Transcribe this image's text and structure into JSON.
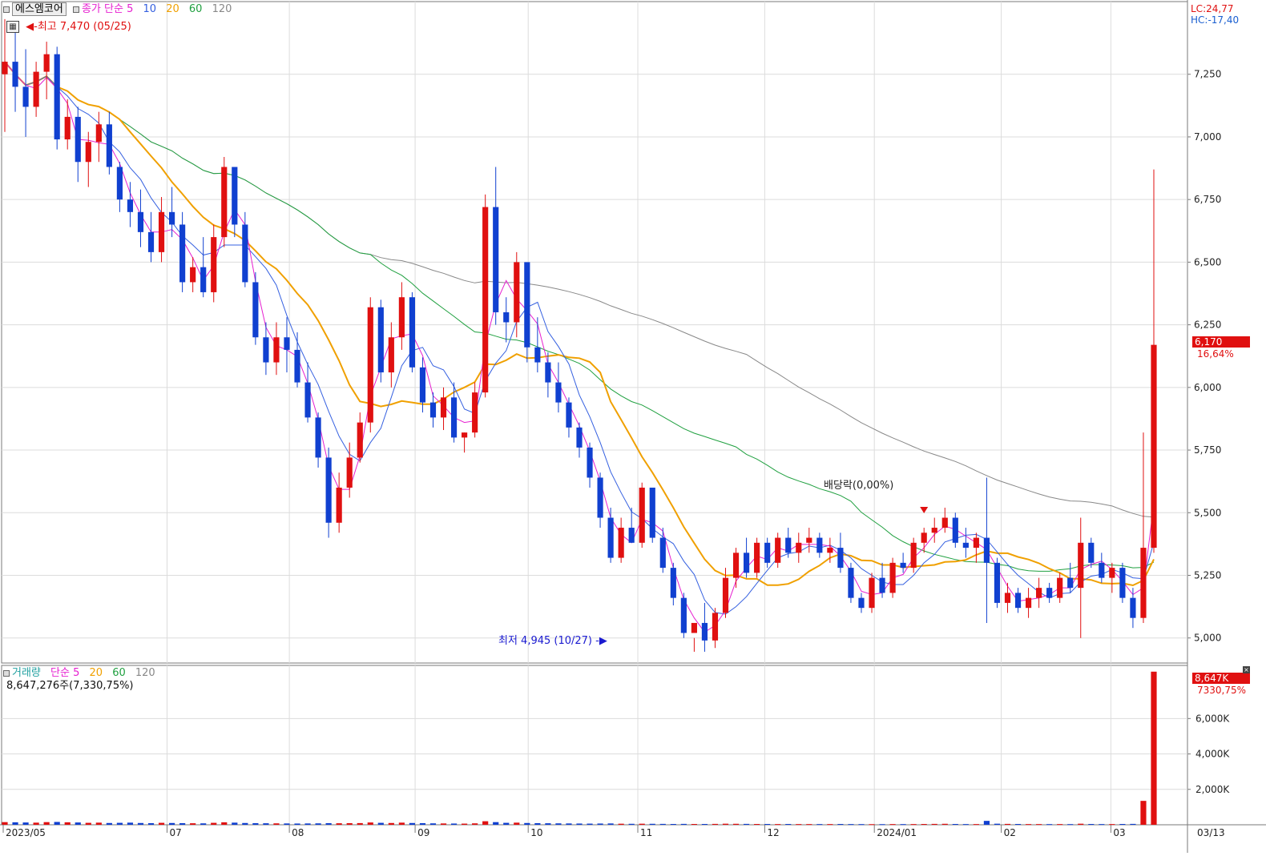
{
  "price_panel": {
    "stock_name": "에스엠코어",
    "ma_label": "종가 단순",
    "ma_periods": [
      "5",
      "10",
      "20",
      "60",
      "120"
    ],
    "ma_colors": [
      "#e61fd0",
      "#3560e0",
      "#f0a000",
      "#20a040",
      "#888888"
    ],
    "high_marker": "최고 7,470 (05/25)",
    "low_marker": "최저 4,945 (10/27)",
    "dividend_label": "배당락(0,00%)",
    "lc": "LC:24,77",
    "hc": "HC:-17,40",
    "current_price": "6,170",
    "current_change": "16,64%"
  },
  "volume_panel": {
    "label": "거래량",
    "ma_label": "단순",
    "ma_periods": [
      "5",
      "20",
      "60",
      "120"
    ],
    "ma_colors": [
      "#e61fd0",
      "#f0a000",
      "#20a040",
      "#888888"
    ],
    "volume_text": "8,647,276주(7,330,75%)",
    "current_volume": "8,647K",
    "current_ratio": "7330,75%"
  },
  "x_axis_labels": [
    "2023/05",
    "07",
    "08",
    "09",
    "10",
    "11",
    "12",
    "2024/01",
    "02",
    "03",
    "03/13"
  ],
  "price_axis_ticks": [
    "7,250",
    "7,000",
    "6,750",
    "6,500",
    "6,250",
    "6,000",
    "5,750",
    "5,500",
    "5,250",
    "5,000"
  ],
  "volume_axis_ticks": [
    "6,000K",
    "4,000K",
    "2,000K"
  ],
  "chart_data": {
    "type": "candlestick",
    "up_color": "#e01010",
    "down_color": "#1040d0",
    "price_ylim": [
      4900,
      7540
    ],
    "volume_ylim": [
      0,
      9000000
    ],
    "candles_ohlc": [
      [
        7250,
        7470,
        7020,
        7300
      ],
      [
        7300,
        7440,
        7100,
        7200
      ],
      [
        7200,
        7350,
        7000,
        7120
      ],
      [
        7120,
        7300,
        7080,
        7260
      ],
      [
        7260,
        7380,
        7150,
        7330
      ],
      [
        7330,
        7360,
        6950,
        6990
      ],
      [
        6990,
        7150,
        6950,
        7080
      ],
      [
        7080,
        7120,
        6820,
        6900
      ],
      [
        6900,
        7020,
        6800,
        6980
      ],
      [
        6980,
        7100,
        6900,
        7050
      ],
      [
        7050,
        7100,
        6850,
        6880
      ],
      [
        6880,
        6900,
        6700,
        6750
      ],
      [
        6750,
        6820,
        6640,
        6700
      ],
      [
        6700,
        6790,
        6560,
        6620
      ],
      [
        6620,
        6700,
        6500,
        6540
      ],
      [
        6540,
        6760,
        6500,
        6700
      ],
      [
        6700,
        6800,
        6600,
        6650
      ],
      [
        6650,
        6700,
        6380,
        6420
      ],
      [
        6420,
        6520,
        6380,
        6480
      ],
      [
        6480,
        6600,
        6360,
        6380
      ],
      [
        6380,
        6650,
        6340,
        6600
      ],
      [
        6600,
        6920,
        6560,
        6880
      ],
      [
        6880,
        6860,
        6600,
        6650
      ],
      [
        6650,
        6700,
        6400,
        6420
      ],
      [
        6420,
        6460,
        6170,
        6200
      ],
      [
        6200,
        6260,
        6050,
        6100
      ],
      [
        6100,
        6260,
        6050,
        6200
      ],
      [
        6200,
        6280,
        6060,
        6150
      ],
      [
        6150,
        6220,
        6000,
        6020
      ],
      [
        6020,
        6100,
        5860,
        5880
      ],
      [
        5880,
        5900,
        5680,
        5720
      ],
      [
        5720,
        5760,
        5400,
        5460
      ],
      [
        5460,
        5660,
        5420,
        5600
      ],
      [
        5600,
        5780,
        5560,
        5720
      ],
      [
        5720,
        5900,
        5700,
        5860
      ],
      [
        5860,
        6360,
        5820,
        6320
      ],
      [
        6320,
        6350,
        6020,
        6060
      ],
      [
        6060,
        6260,
        6000,
        6200
      ],
      [
        6200,
        6420,
        6150,
        6360
      ],
      [
        6360,
        6380,
        6060,
        6080
      ],
      [
        6080,
        6120,
        5900,
        5940
      ],
      [
        5940,
        5980,
        5840,
        5880
      ],
      [
        5880,
        6000,
        5830,
        5960
      ],
      [
        5960,
        6020,
        5780,
        5800
      ],
      [
        5800,
        5820,
        5740,
        5820
      ],
      [
        5820,
        6020,
        5800,
        5980
      ],
      [
        5980,
        6770,
        5960,
        6720
      ],
      [
        6720,
        6880,
        6250,
        6300
      ],
      [
        6300,
        6360,
        6180,
        6260
      ],
      [
        6260,
        6540,
        6200,
        6500
      ],
      [
        6500,
        6300,
        6100,
        6160
      ],
      [
        6160,
        6280,
        6060,
        6100
      ],
      [
        6100,
        6140,
        5960,
        6020
      ],
      [
        6020,
        6100,
        5900,
        5940
      ],
      [
        5940,
        5960,
        5800,
        5840
      ],
      [
        5840,
        5860,
        5720,
        5760
      ],
      [
        5760,
        5780,
        5600,
        5640
      ],
      [
        5640,
        5660,
        5440,
        5480
      ],
      [
        5480,
        5520,
        5300,
        5320
      ],
      [
        5320,
        5480,
        5300,
        5440
      ],
      [
        5440,
        5520,
        5380,
        5380
      ],
      [
        5380,
        5620,
        5360,
        5600
      ],
      [
        5600,
        5440,
        5380,
        5400
      ],
      [
        5400,
        5440,
        5260,
        5280
      ],
      [
        5280,
        5300,
        5130,
        5160
      ],
      [
        5160,
        5180,
        5000,
        5020
      ],
      [
        5020,
        5000,
        4945,
        5060
      ],
      [
        5060,
        5140,
        4945,
        4990
      ],
      [
        4990,
        5120,
        4960,
        5100
      ],
      [
        5100,
        5280,
        5080,
        5240
      ],
      [
        5240,
        5360,
        5200,
        5340
      ],
      [
        5340,
        5400,
        5240,
        5260
      ],
      [
        5260,
        5400,
        5240,
        5380
      ],
      [
        5380,
        5400,
        5280,
        5300
      ],
      [
        5300,
        5420,
        5280,
        5400
      ],
      [
        5400,
        5440,
        5320,
        5340
      ],
      [
        5340,
        5420,
        5300,
        5380
      ],
      [
        5380,
        5440,
        5340,
        5400
      ],
      [
        5400,
        5420,
        5320,
        5340
      ],
      [
        5340,
        5400,
        5300,
        5360
      ],
      [
        5360,
        5420,
        5260,
        5280
      ],
      [
        5280,
        5300,
        5140,
        5160
      ],
      [
        5160,
        5180,
        5100,
        5120
      ],
      [
        5120,
        5260,
        5100,
        5240
      ],
      [
        5240,
        5300,
        5160,
        5180
      ],
      [
        5180,
        5320,
        5160,
        5300
      ],
      [
        5300,
        5340,
        5260,
        5280
      ],
      [
        5280,
        5400,
        5260,
        5380
      ],
      [
        5380,
        5440,
        5340,
        5420
      ],
      [
        5420,
        5480,
        5380,
        5440
      ],
      [
        5440,
        5520,
        5420,
        5480
      ],
      [
        5480,
        5500,
        5360,
        5380
      ],
      [
        5380,
        5440,
        5320,
        5360
      ],
      [
        5360,
        5420,
        5300,
        5400
      ],
      [
        5400,
        5640,
        5060,
        5300
      ],
      [
        5300,
        5320,
        5120,
        5140
      ],
      [
        5140,
        5220,
        5100,
        5180
      ],
      [
        5180,
        5200,
        5100,
        5120
      ],
      [
        5120,
        5200,
        5080,
        5160
      ],
      [
        5160,
        5240,
        5120,
        5200
      ],
      [
        5200,
        5220,
        5140,
        5160
      ],
      [
        5160,
        5260,
        5140,
        5240
      ],
      [
        5240,
        5300,
        5180,
        5200
      ],
      [
        5200,
        5480,
        5000,
        5380
      ],
      [
        5380,
        5400,
        5280,
        5300
      ],
      [
        5300,
        5340,
        5220,
        5240
      ],
      [
        5240,
        5300,
        5180,
        5280
      ],
      [
        5280,
        5300,
        5140,
        5160
      ],
      [
        5160,
        5200,
        5040,
        5080
      ],
      [
        5080,
        5820,
        5060,
        5360
      ],
      [
        5360,
        6870,
        5340,
        6170
      ]
    ],
    "volume_values": [
      150000,
      140000,
      130000,
      120000,
      150000,
      160000,
      140000,
      130000,
      110000,
      120000,
      100000,
      110000,
      120000,
      100000,
      90000,
      110000,
      100000,
      90000,
      85000,
      80000,
      110000,
      140000,
      120000,
      100000,
      90000,
      85000,
      80000,
      75000,
      70000,
      75000,
      80000,
      90000,
      85000,
      90000,
      95000,
      130000,
      110000,
      100000,
      120000,
      100000,
      90000,
      80000,
      75000,
      70000,
      65000,
      80000,
      200000,
      150000,
      110000,
      120000,
      100000,
      90000,
      85000,
      80000,
      75000,
      70000,
      65000,
      70000,
      75000,
      60000,
      55000,
      60000,
      55000,
      50000,
      45000,
      50000,
      45000,
      45000,
      50000,
      60000,
      55000,
      50000,
      45000,
      45000,
      40000,
      45000,
      40000,
      40000,
      40000,
      40000,
      45000,
      40000,
      38000,
      35000,
      35000,
      40000,
      38000,
      40000,
      45000,
      50000,
      55000,
      45000,
      40000,
      40000,
      220000,
      60000,
      50000,
      45000,
      40000,
      40000,
      38000,
      40000,
      38000,
      60000,
      45000,
      40000,
      40000,
      45000,
      50000,
      1350000,
      8647276
    ]
  }
}
